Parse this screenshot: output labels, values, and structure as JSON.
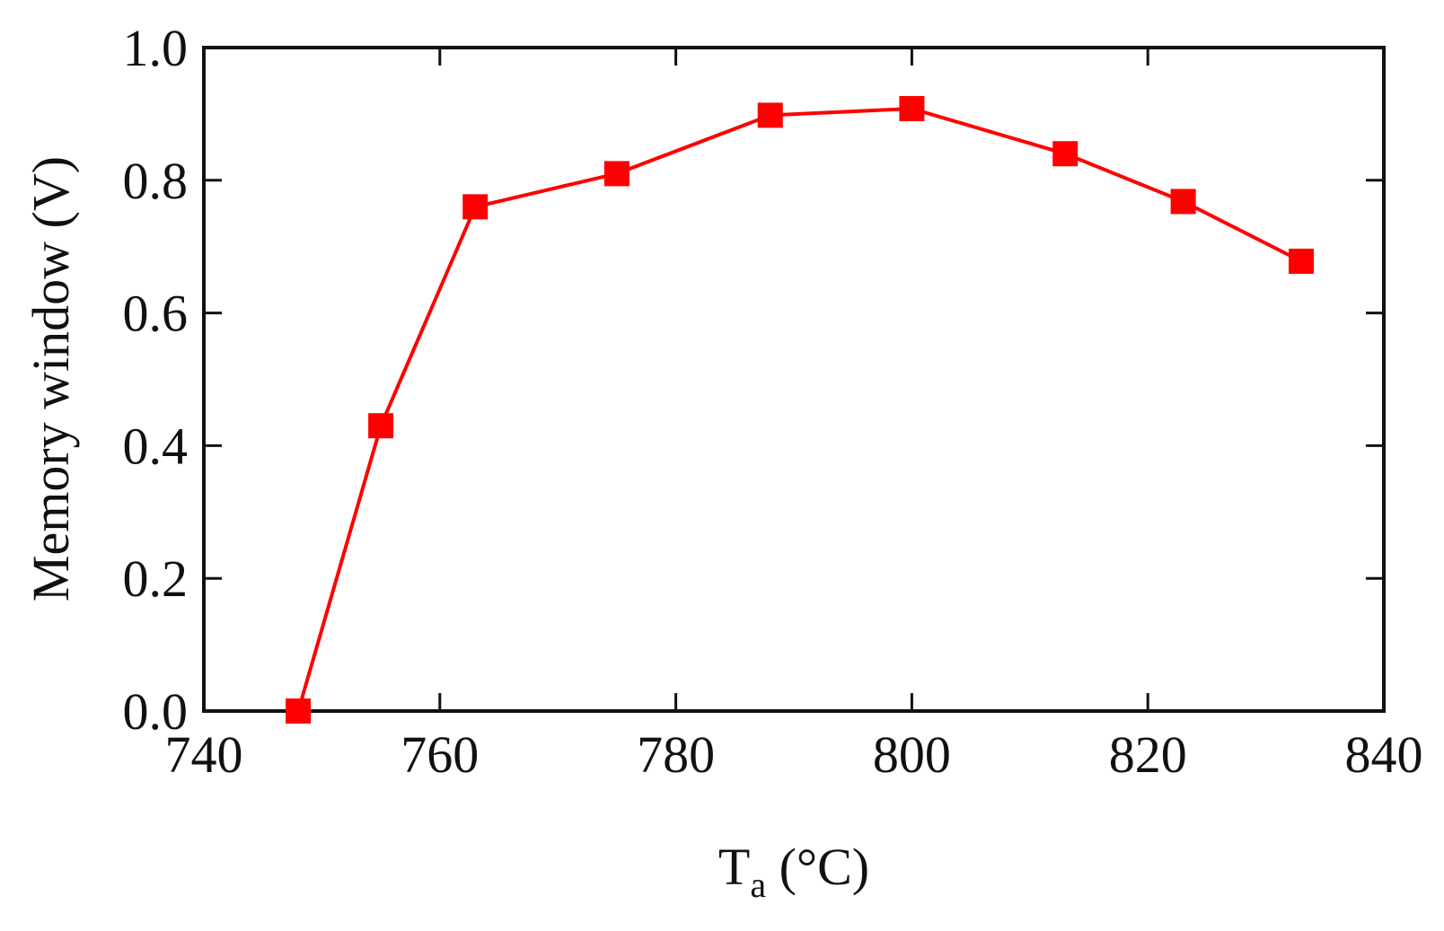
{
  "chart_data": {
    "type": "line",
    "xlabel_main": "T",
    "xlabel_sub": "a",
    "xlabel_unit": " (°C)",
    "ylabel": "Memory window (V)",
    "xlim": [
      740,
      840
    ],
    "ylim": [
      0.0,
      1.0
    ],
    "xticks": [
      "740",
      "760",
      "780",
      "800",
      "820",
      "840"
    ],
    "yticks": [
      "0.0",
      "0.2",
      "0.4",
      "0.6",
      "0.8",
      "1.0"
    ],
    "grid": false,
    "series": [
      {
        "color": "#ff0000",
        "marker": "square",
        "x": [
          748,
          755,
          763,
          775,
          788,
          800,
          813,
          823,
          833
        ],
        "y": [
          0.0,
          0.43,
          0.76,
          0.81,
          0.898,
          0.908,
          0.84,
          0.768,
          0.678
        ]
      }
    ]
  }
}
